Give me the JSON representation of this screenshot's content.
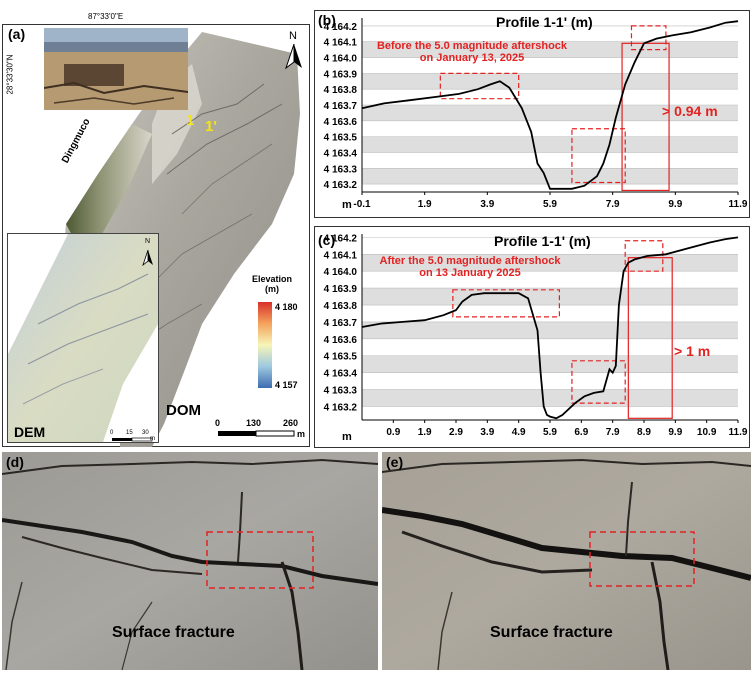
{
  "panel_a": {
    "tag": "(a)",
    "lon_label": "87°33'0\"E",
    "lat_label": "28°33'30\"N",
    "river_label": "Dingmuco",
    "profile_start": "1",
    "profile_end": "1'",
    "north": "N",
    "dem_north": "N",
    "dom_label": "DOM",
    "dem_label": "DEM",
    "legend_title_1": "Elevation",
    "legend_title_2": "(m)",
    "legend_max": "4 180",
    "legend_min": "4 157",
    "legend_colors": [
      "#d7302b",
      "#f4a35c",
      "#f7f4b8",
      "#9ec9df",
      "#3d6cb0"
    ],
    "scale_main": {
      "ticks": [
        "0",
        "130",
        "260"
      ],
      "unit": "m"
    },
    "scale_dem": {
      "ticks": [
        "0",
        "15",
        "30"
      ],
      "unit": "m"
    }
  },
  "chart_data": [
    {
      "type": "line",
      "panel": "(b)",
      "title": "Profile 1-1' (m)",
      "annotation": "Before the 5.0 magnitude aftershock on January 13, 2025",
      "annotation_lines": [
        "Before the 5.0 magnitude aftershock",
        "on January 13, 2025"
      ],
      "offset_label": "> 0.94 m",
      "xlabel": "m",
      "x_ticks": [
        "-0.1",
        "1.9",
        "3.9",
        "5.9",
        "7.9",
        "9.9",
        "11.9"
      ],
      "y_ticks": [
        "4 163.2",
        "4 163.3",
        "4 163.4",
        "4 163.5",
        "4 163.6",
        "4 163.7",
        "4 163.8",
        "4 163.9",
        "4 164.0",
        "4 164.1",
        "4 164.2"
      ],
      "xlim": [
        -0.1,
        11.9
      ],
      "ylim": [
        4163.15,
        4164.25
      ],
      "series": [
        {
          "x": [
            -0.1,
            0.6,
            1.4,
            2.2,
            3.0,
            3.6,
            4.0,
            4.3,
            4.6,
            5.0,
            5.3,
            5.5,
            5.7,
            5.9,
            6.2,
            6.6,
            7.0,
            7.4,
            7.6,
            7.8,
            8.0,
            8.3,
            8.6,
            8.9,
            9.3,
            9.8,
            10.4,
            11.0,
            11.5,
            11.9
          ],
          "y": [
            4163.68,
            4163.71,
            4163.73,
            4163.75,
            4163.77,
            4163.8,
            4163.83,
            4163.85,
            4163.81,
            4163.68,
            4163.53,
            4163.33,
            4163.27,
            4163.17,
            4163.17,
            4163.17,
            4163.19,
            4163.25,
            4163.33,
            4163.45,
            4163.62,
            4163.83,
            4163.97,
            4164.09,
            4164.12,
            4164.14,
            4164.16,
            4164.19,
            4164.22,
            4164.23
          ]
        }
      ]
    },
    {
      "type": "line",
      "panel": "(c)",
      "title": "Profile 1-1' (m)",
      "annotation": "After the 5.0 magnitude aftershock on 13 January 2025",
      "annotation_lines": [
        "After the 5.0 magnitude aftershock",
        "on 13 January 2025"
      ],
      "offset_label": "> 1 m",
      "xlabel": "m",
      "x_ticks": [
        "0.9",
        "1.9",
        "2.9",
        "3.9",
        "4.9",
        "5.9",
        "6.9",
        "7.9",
        "8.9",
        "9.9",
        "10.9",
        "11.9"
      ],
      "y_ticks": [
        "4 163.2",
        "4 163.3",
        "4 163.4",
        "4 163.5",
        "4 163.6",
        "4 163.7",
        "4 163.8",
        "4 163.9",
        "4 164.0",
        "4 164.1",
        "4 164.2"
      ],
      "xlim": [
        -0.1,
        11.9
      ],
      "ylim": [
        4163.12,
        4164.22
      ],
      "series": [
        {
          "x": [
            -0.1,
            0.5,
            1.2,
            1.9,
            2.5,
            2.9,
            3.1,
            3.4,
            3.8,
            4.3,
            4.9,
            5.2,
            5.5,
            5.6,
            5.7,
            5.8,
            5.9,
            6.1,
            6.3,
            6.7,
            7.0,
            7.3,
            7.6,
            7.8,
            7.9,
            8.0,
            8.1,
            8.25,
            8.4,
            8.6,
            9.0,
            9.6,
            10.4,
            11.0,
            11.5,
            11.9
          ],
          "y": [
            4163.67,
            4163.69,
            4163.7,
            4163.71,
            4163.74,
            4163.77,
            4163.82,
            4163.86,
            4163.87,
            4163.87,
            4163.87,
            4163.84,
            4163.65,
            4163.4,
            4163.2,
            4163.15,
            4163.14,
            4163.13,
            4163.15,
            4163.22,
            4163.26,
            4163.28,
            4163.29,
            4163.42,
            4163.4,
            4163.44,
            4163.8,
            4164.0,
            4164.05,
            4164.07,
            4164.09,
            4164.1,
            4164.14,
            4164.17,
            4164.19,
            4164.2
          ]
        }
      ]
    }
  ],
  "panel_d": {
    "tag": "(d)",
    "label": "Surface fracture"
  },
  "panel_e": {
    "tag": "(e)",
    "label": "Surface fracture"
  }
}
